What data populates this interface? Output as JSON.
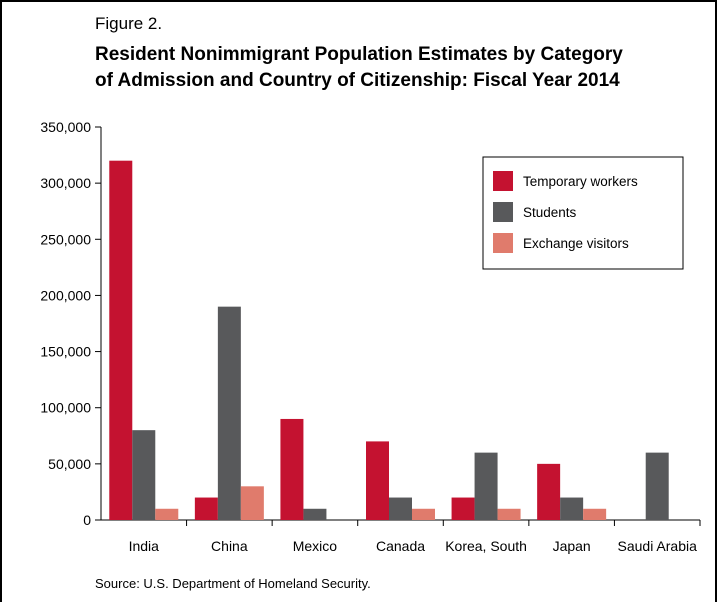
{
  "figure_label": "Figure 2.",
  "title_line1": "Resident Nonimmigrant Population Estimates by Category",
  "title_line2": "of Admission and Country of Citizenship: Fiscal Year 2014",
  "source": "Source: U.S. Department of Homeland Security.",
  "chart_data": {
    "type": "bar",
    "categories": [
      "India",
      "China",
      "Mexico",
      "Canada",
      "Korea, South",
      "Japan",
      "Saudi Arabia"
    ],
    "series": [
      {
        "name": "Temporary workers",
        "color": "#c41230",
        "values": [
          320000,
          20000,
          90000,
          70000,
          20000,
          50000,
          0
        ]
      },
      {
        "name": "Students",
        "color": "#58595b",
        "values": [
          80000,
          190000,
          10000,
          20000,
          60000,
          20000,
          60000
        ]
      },
      {
        "name": "Exchange visitors",
        "color": "#e07b6c",
        "values": [
          10000,
          30000,
          0,
          10000,
          10000,
          10000,
          0
        ]
      }
    ],
    "yticks": [
      "0",
      "50,000",
      "100,000",
      "150,000",
      "200,000",
      "250,000",
      "300,000",
      "350,000"
    ],
    "ylim": [
      0,
      350000
    ],
    "legend_position": "top-right",
    "grid": false
  }
}
